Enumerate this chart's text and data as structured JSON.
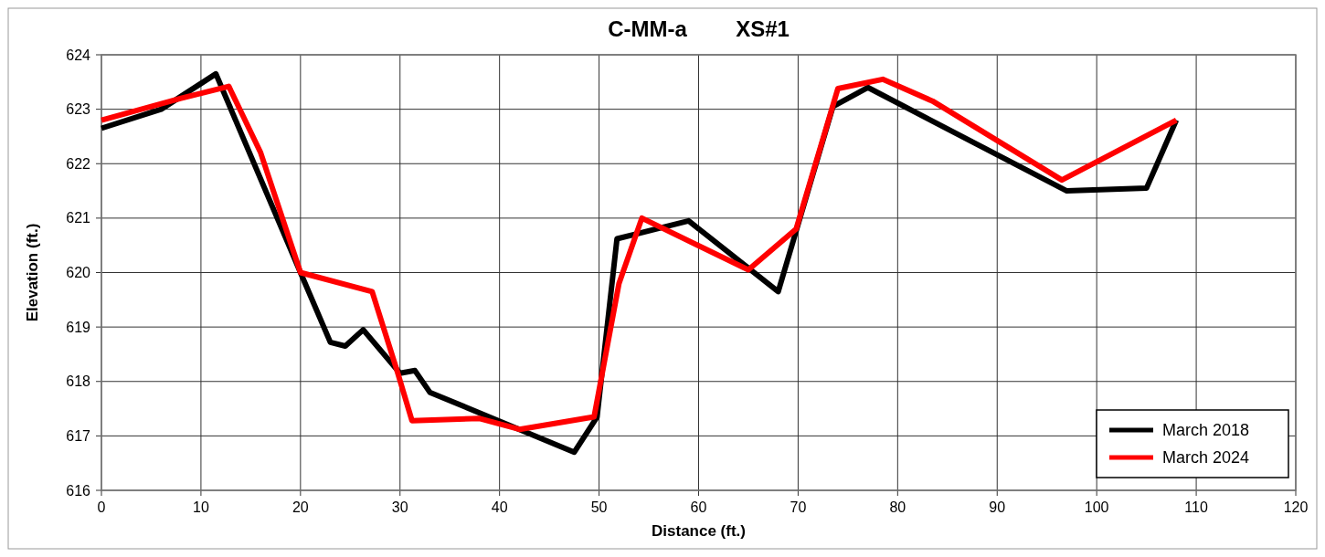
{
  "chart_data": {
    "type": "line",
    "title": "C-MM-a        XS#1",
    "xlabel": "Distance (ft.)",
    "ylabel": "Elevation (ft.)",
    "xlim": [
      0,
      120
    ],
    "xticks": [
      0,
      10,
      20,
      30,
      40,
      50,
      60,
      70,
      80,
      90,
      100,
      110,
      120
    ],
    "ylim": [
      616,
      624
    ],
    "yticks": [
      616,
      617,
      618,
      619,
      620,
      621,
      622,
      623,
      624
    ],
    "grid": true,
    "legend": "bottom right",
    "marker": "none",
    "line_style": "solid",
    "series": [
      {
        "name": "March 2018",
        "color": "#000000",
        "x": [
          0,
          6,
          11.5,
          20,
          23,
          24.5,
          26.3,
          30,
          31.5,
          33,
          47.5,
          49.8,
          51.8,
          59,
          68,
          73.5,
          77,
          97,
          105,
          108
        ],
        "values": [
          622.65,
          623.0,
          623.65,
          620.0,
          618.72,
          618.65,
          618.95,
          618.15,
          618.2,
          617.8,
          616.7,
          617.35,
          620.62,
          620.95,
          619.65,
          623.05,
          623.4,
          621.5,
          621.55,
          622.8
        ]
      },
      {
        "name": "March 2024",
        "color": "#ff0000",
        "x": [
          0,
          8,
          12.8,
          16,
          20,
          27.2,
          29.7,
          31.2,
          38,
          42,
          49.5,
          52,
          54.3,
          65,
          69.8,
          74,
          78.5,
          83.5,
          96.5,
          108
        ],
        "values": [
          622.8,
          623.2,
          623.42,
          622.2,
          620.0,
          619.65,
          618.2,
          617.28,
          617.32,
          617.12,
          617.35,
          619.8,
          621.0,
          620.05,
          620.8,
          623.38,
          623.55,
          623.15,
          621.7,
          622.8
        ]
      }
    ]
  }
}
